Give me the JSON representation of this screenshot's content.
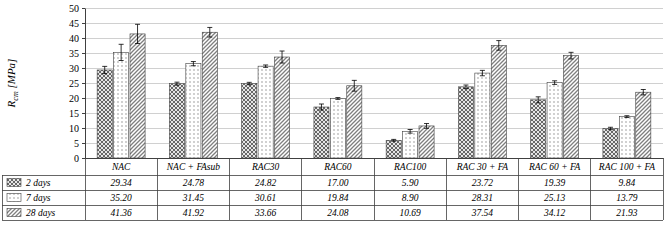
{
  "chart_data": {
    "type": "bar",
    "y_label": "Rcm [MPa]",
    "categories": [
      "NAC",
      "NAC + FAsub",
      "RAC30",
      "RAC60",
      "RAC100",
      "RAC 30 + FA",
      "RAC 60 + FA",
      "RAC 100 + FA"
    ],
    "series": [
      {
        "name": "2 days",
        "color": "#595959",
        "values": [
          29.34,
          24.78,
          24.82,
          17.0,
          5.9,
          23.72,
          19.39,
          9.84
        ],
        "value_labels": [
          "29.34",
          "24.78",
          "24.82",
          "17.00",
          "5.90",
          "23.72",
          "19.39",
          "9.84"
        ],
        "errors": [
          1.2,
          0.5,
          0.4,
          1.0,
          0.3,
          0.6,
          1.0,
          0.4
        ]
      },
      {
        "name": "7 days",
        "color": "#7f7f7f",
        "values": [
          35.2,
          31.45,
          30.61,
          19.84,
          8.9,
          28.31,
          25.13,
          13.79
        ],
        "value_labels": [
          "35.20",
          "31.45",
          "30.61",
          "19.84",
          "8.90",
          "28.31",
          "25.13",
          "13.79"
        ],
        "errors": [
          2.7,
          0.7,
          0.4,
          0.3,
          0.6,
          0.9,
          0.6,
          0.3
        ]
      },
      {
        "name": "28 days",
        "color": "#7f7f7f",
        "values": [
          41.36,
          41.92,
          33.66,
          24.08,
          10.69,
          37.54,
          34.12,
          21.93
        ],
        "value_labels": [
          "41.36",
          "41.92",
          "33.66",
          "24.08",
          "10.69",
          "37.54",
          "34.12",
          "21.93"
        ],
        "errors": [
          3.2,
          1.6,
          2.0,
          1.8,
          0.8,
          1.6,
          1.1,
          0.9
        ]
      }
    ],
    "ylim": [
      0,
      50
    ],
    "yticks": [
      0,
      5,
      10,
      15,
      20,
      25,
      30,
      35,
      40,
      45,
      50
    ],
    "grid": true,
    "legend": "bottom"
  }
}
